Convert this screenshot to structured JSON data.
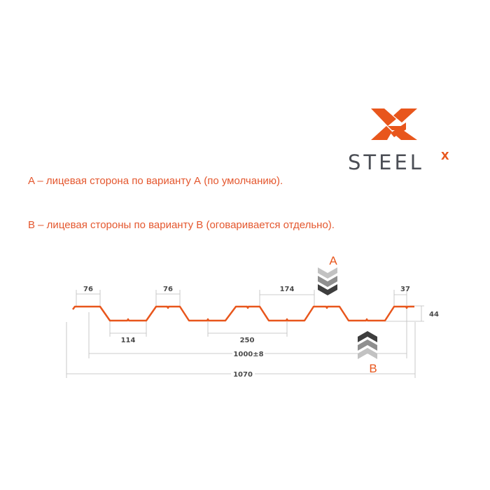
{
  "logo": {
    "text": "STEEL",
    "superscript": "X",
    "brand_color": "#e8561c",
    "text_color": "#4b4e55"
  },
  "notes": [
    "A – лицевая сторона по варианту А (по умолчанию).",
    "B – лицевая стороны по варианту В (оговаривается отдельно)."
  ],
  "profile": {
    "color": "#e8561c",
    "dimensions": {
      "top_left": "76",
      "top_second": "76",
      "bottom_width": "114",
      "pitch": "250",
      "top_gap": "174",
      "edge": "37",
      "height": "44",
      "working_width": "1000±8",
      "total_width": "1070"
    },
    "side_a_label": "A",
    "side_b_label": "B"
  }
}
